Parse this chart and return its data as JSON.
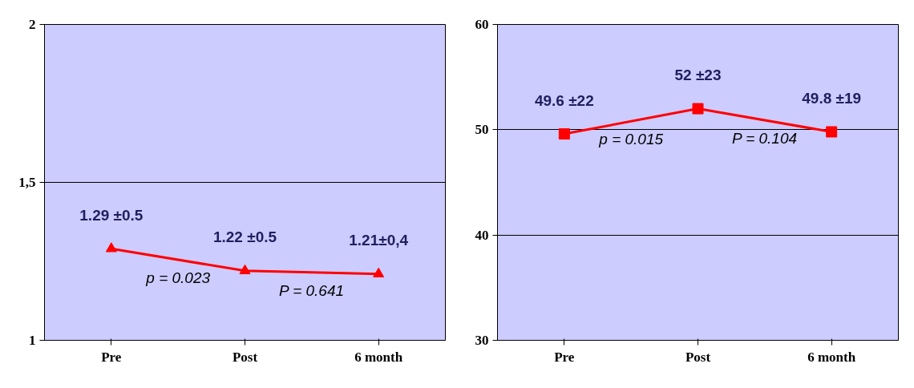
{
  "chart_data": [
    {
      "type": "line",
      "categories": [
        "Pre",
        "Post",
        "6 month"
      ],
      "series": [
        {
          "color": "#ff0000",
          "values": [
            1.29,
            1.22,
            1.21
          ],
          "value_labels": [
            "1.29 ±0.5",
            "1.22 ±0.5",
            "1.21±0,4"
          ]
        }
      ],
      "marker": "triangle",
      "ylim": [
        1,
        2
      ],
      "yticks": [
        1,
        {
          "value": 1.5,
          "label": "1,5"
        },
        2
      ],
      "grid": "y",
      "annotations": [
        "p = 0.023",
        "P = 0.641"
      ]
    },
    {
      "type": "line",
      "categories": [
        "Pre",
        "Post",
        "6 month"
      ],
      "series": [
        {
          "color": "#ff0000",
          "values": [
            49.6,
            52,
            49.8
          ],
          "value_labels": [
            "49.6 ±22",
            "52 ±23",
            "49.8 ±19"
          ]
        }
      ],
      "marker": "square",
      "ylim": [
        30,
        60
      ],
      "yticks": [
        30,
        40,
        50,
        60
      ],
      "grid": "y",
      "annotations": [
        "p = 0.015",
        "P = 0.104"
      ]
    }
  ]
}
